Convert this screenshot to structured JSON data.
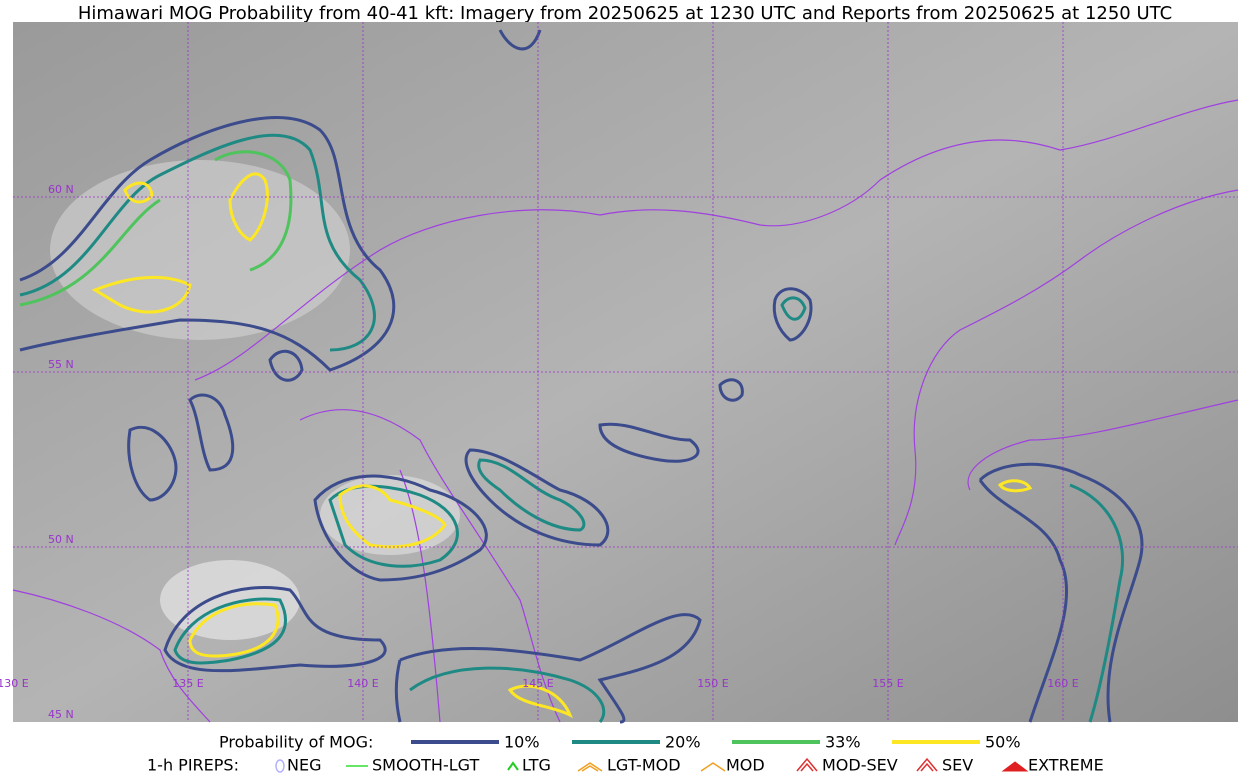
{
  "title": "Himawari MOG Probability from 40-41 kft: Imagery from 20250625 at 1230 UTC and Reports from 20250625 at 1250 UTC",
  "map": {
    "lat_labels": [
      "60 N",
      "55 N",
      "50 N",
      "45 N"
    ],
    "lon_labels": [
      "130 E",
      "135 E",
      "140 E",
      "145 E",
      "150 E",
      "155 E",
      "160 E"
    ]
  },
  "legend": {
    "probability": {
      "label": "Probability of MOG:",
      "items": [
        {
          "label": "10%",
          "color": "#3b4b8c"
        },
        {
          "label": "20%",
          "color": "#1f8a84"
        },
        {
          "label": "33%",
          "color": "#4fc35c"
        },
        {
          "label": "50%",
          "color": "#fde725"
        }
      ]
    },
    "pireps": {
      "label": "1-h PIREPS:",
      "items": [
        {
          "label": "NEG",
          "color": "#b0b0ff"
        },
        {
          "label": "SMOOTH-LGT",
          "color": "#33dd33"
        },
        {
          "label": "LTG",
          "color": "#22cc22"
        },
        {
          "label": "LGT-MOD",
          "color": "#f0a020"
        },
        {
          "label": "MOD",
          "color": "#f0a020"
        },
        {
          "label": "MOD-SEV",
          "color": "#e03030"
        },
        {
          "label": "SEV",
          "color": "#e03030"
        },
        {
          "label": "EXTREME",
          "color": "#e02020"
        }
      ]
    }
  }
}
